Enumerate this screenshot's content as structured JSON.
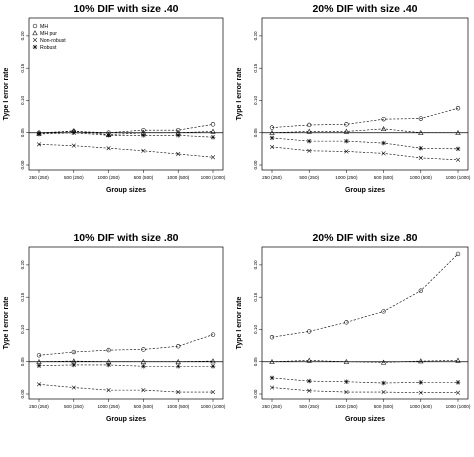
{
  "chart_data": [
    {
      "type": "line",
      "title": "10% DIF with size .40",
      "xlabel": "Group sizes",
      "ylabel": "Type I error rate",
      "categories": [
        "250 (250)",
        "500 (250)",
        "1000 (250)",
        "500 (500)",
        "1000 (500)",
        "1000 (1000)"
      ],
      "ylim": [
        0.0,
        0.22
      ],
      "yticks": [
        "0.00",
        "0.05",
        "0.10",
        "0.15",
        "0.20"
      ],
      "reference_line": 0.05,
      "legend": [
        "MH",
        "MH pur",
        "Non-robust",
        "Robust"
      ],
      "series": [
        {
          "name": "MH",
          "marker": "circle",
          "values": [
            0.05,
            0.052,
            0.05,
            0.054,
            0.054,
            0.063
          ]
        },
        {
          "name": "MH pur",
          "marker": "triangle",
          "values": [
            0.049,
            0.053,
            0.047,
            0.05,
            0.05,
            0.052
          ]
        },
        {
          "name": "Non-robust",
          "marker": "x",
          "values": [
            0.032,
            0.03,
            0.026,
            0.022,
            0.017,
            0.012
          ]
        },
        {
          "name": "Robust",
          "marker": "asterisk",
          "values": [
            0.048,
            0.05,
            0.046,
            0.046,
            0.046,
            0.043
          ]
        }
      ]
    },
    {
      "type": "line",
      "title": "20% DIF with size .40",
      "xlabel": "Group sizes",
      "ylabel": "Type I error rate",
      "categories": [
        "250 (250)",
        "500 (250)",
        "1000 (250)",
        "500 (500)",
        "1000 (500)",
        "1000 (1000)"
      ],
      "ylim": [
        0.0,
        0.22
      ],
      "yticks": [
        "0.00",
        "0.05",
        "0.10",
        "0.15",
        "0.20"
      ],
      "reference_line": 0.05,
      "series": [
        {
          "name": "MH",
          "marker": "circle",
          "values": [
            0.058,
            0.062,
            0.063,
            0.071,
            0.072,
            0.088
          ]
        },
        {
          "name": "MH pur",
          "marker": "triangle",
          "values": [
            0.05,
            0.052,
            0.052,
            0.056,
            0.05,
            0.05
          ]
        },
        {
          "name": "Non-robust",
          "marker": "x",
          "values": [
            0.028,
            0.022,
            0.021,
            0.018,
            0.011,
            0.008
          ]
        },
        {
          "name": "Robust",
          "marker": "asterisk",
          "values": [
            0.042,
            0.037,
            0.037,
            0.034,
            0.026,
            0.025
          ]
        }
      ]
    },
    {
      "type": "line",
      "title": "10% DIF with size .80",
      "xlabel": "Group sizes",
      "ylabel": "Type I error rate",
      "categories": [
        "250 (250)",
        "500 (250)",
        "1000 (250)",
        "500 (500)",
        "1000 (500)",
        "1000 (1000)"
      ],
      "ylim": [
        0.0,
        0.22
      ],
      "yticks": [
        "0.00",
        "0.05",
        "0.10",
        "0.15",
        "0.20"
      ],
      "reference_line": 0.05,
      "series": [
        {
          "name": "MH",
          "marker": "circle",
          "values": [
            0.06,
            0.065,
            0.068,
            0.069,
            0.074,
            0.092
          ]
        },
        {
          "name": "MH pur",
          "marker": "triangle",
          "values": [
            0.05,
            0.051,
            0.05,
            0.05,
            0.05,
            0.051
          ]
        },
        {
          "name": "Non-robust",
          "marker": "x",
          "values": [
            0.015,
            0.01,
            0.006,
            0.006,
            0.003,
            0.003
          ]
        },
        {
          "name": "Robust",
          "marker": "asterisk",
          "values": [
            0.044,
            0.045,
            0.045,
            0.043,
            0.043,
            0.043
          ]
        }
      ]
    },
    {
      "type": "line",
      "title": "20% DIF with size .80",
      "xlabel": "Group sizes",
      "ylabel": "Type I error rate",
      "categories": [
        "250 (250)",
        "500 (250)",
        "1000 (250)",
        "500 (500)",
        "1000 (500)",
        "1000 (1000)"
      ],
      "ylim": [
        0.0,
        0.22
      ],
      "yticks": [
        "0.00",
        "0.05",
        "0.10",
        "0.15",
        "0.20"
      ],
      "reference_line": 0.05,
      "series": [
        {
          "name": "MH",
          "marker": "circle",
          "values": [
            0.088,
            0.097,
            0.111,
            0.128,
            0.16,
            0.217
          ]
        },
        {
          "name": "MH pur",
          "marker": "triangle",
          "values": [
            0.05,
            0.052,
            0.05,
            0.049,
            0.051,
            0.052
          ]
        },
        {
          "name": "Non-robust",
          "marker": "x",
          "values": [
            0.01,
            0.005,
            0.003,
            0.003,
            0.002,
            0.002
          ]
        },
        {
          "name": "Robust",
          "marker": "asterisk",
          "values": [
            0.025,
            0.02,
            0.019,
            0.017,
            0.018,
            0.018
          ]
        }
      ]
    }
  ]
}
